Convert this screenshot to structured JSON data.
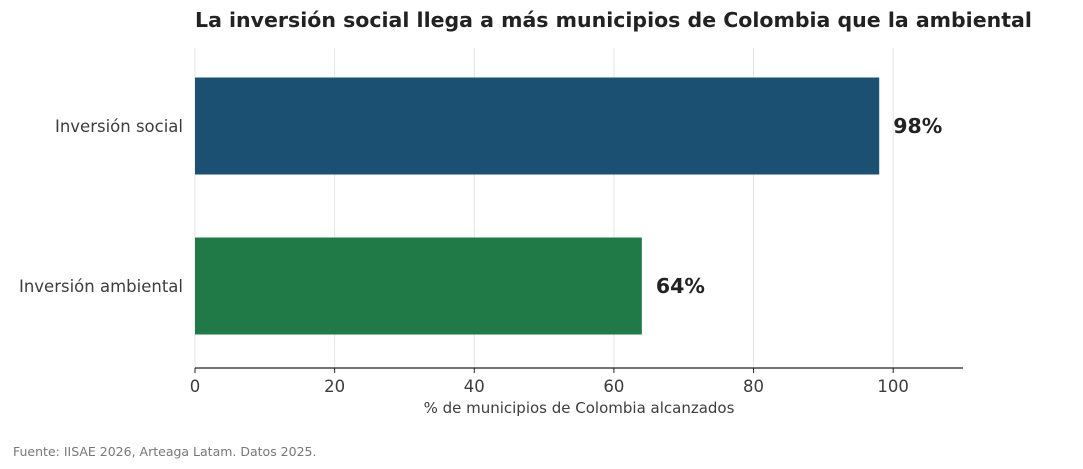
{
  "chart_data": {
    "type": "bar",
    "orientation": "horizontal",
    "title": "La inversión social llega a más municipios de Colombia que la ambiental",
    "categories": [
      "Inversión social",
      "Inversión ambiental"
    ],
    "values": [
      98,
      64
    ],
    "data_labels": [
      "98%",
      "64%"
    ],
    "colors": [
      "#1c5073",
      "#1f7a48"
    ],
    "xlabel": "% de municipios de Colombia alcanzados",
    "xlim": [
      0,
      110
    ],
    "xticks": [
      0,
      20,
      40,
      60,
      80,
      100
    ],
    "grid": "vertical"
  },
  "source": "Fuente: IISAE 2026, Arteaga Latam. Datos 2025."
}
